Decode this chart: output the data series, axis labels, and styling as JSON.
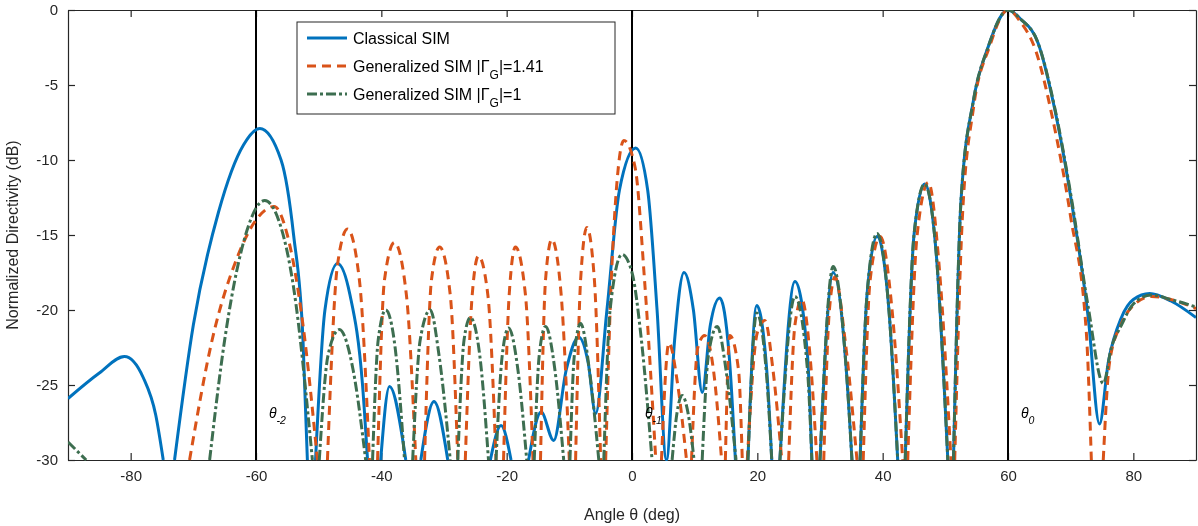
{
  "chart_data": {
    "type": "line",
    "xlabel": "Angle θ (deg)",
    "ylabel": "Normalized Directivity (dB)",
    "xlim": [
      -90,
      90
    ],
    "ylim": [
      -30,
      0
    ],
    "xticks": [
      -80,
      -60,
      -40,
      -20,
      0,
      20,
      40,
      60,
      80
    ],
    "yticks": [
      -30,
      -25,
      -20,
      -15,
      -10,
      -5,
      0
    ],
    "grid": false,
    "legend": "top left",
    "marker": "none",
    "series": [
      {
        "name": "Classical SIM",
        "color": "#0072bd",
        "line_style": "solid",
        "x": [
          -90,
          -85,
          -81,
          -78,
          -76,
          -74.8,
          -74,
          -73,
          -70,
          -66,
          -62,
          -59.4,
          -56,
          -54,
          -52.5,
          -51.8,
          -51.1,
          -50.5,
          -49,
          -47,
          -45,
          -43,
          -42.2,
          -41,
          -40.1,
          -38.7,
          -36.1,
          -35,
          -33.7,
          -31.6,
          -29.4,
          -24,
          -22.6,
          -20.9,
          -19.3,
          -18,
          -16.5,
          -14.5,
          -12.5,
          -10.5,
          -8.5,
          -7,
          -5.8,
          -4,
          -2,
          0.6,
          2.5,
          4,
          5.5,
          6.8,
          8.3,
          9.8,
          11.2,
          12.5,
          14,
          15.5,
          16.5,
          17.5,
          18.5,
          19.9,
          21.5,
          22.3,
          23,
          23.6,
          26,
          28,
          28.7,
          29.3,
          30,
          32.1,
          34.2,
          35.1,
          35.7,
          36.4,
          37.5,
          39.1,
          41,
          42.4,
          43,
          43.6,
          45,
          46.7,
          48.5,
          50.4,
          50.8,
          51.3,
          52.5,
          54.5,
          56.8,
          60,
          62,
          64.8,
          67.4,
          70.1,
          72.8,
          74.6,
          76,
          78.1,
          80,
          82.6,
          86,
          90
        ],
        "values": [
          -25.9,
          -24.2,
          -23.1,
          -24.5,
          -27,
          -30,
          null,
          -30,
          -21,
          -13.5,
          -9,
          -7.9,
          -10,
          -15,
          -22,
          -30,
          null,
          -30,
          -20,
          -16.9,
          -19,
          -25,
          -30,
          null,
          -30,
          -25.1,
          -30,
          null,
          -30,
          -26.1,
          -30,
          null,
          -30,
          -27.7,
          -30,
          null,
          -30,
          -26.8,
          -28.7,
          -24,
          -21.8,
          -23.5,
          -26.9,
          -20,
          -12,
          -9.2,
          -12,
          -20,
          -30,
          -22,
          -17.5,
          -20,
          -25.5,
          -21,
          -19.2,
          -23,
          -30,
          null,
          -30,
          -19.7,
          -24,
          -30,
          null,
          -30,
          -18.1,
          -23,
          -30,
          null,
          -30,
          -17.5,
          -24,
          -30,
          null,
          -30,
          -19,
          -15.1,
          -20,
          -30,
          null,
          -30,
          -15,
          -11.6,
          -16,
          -30,
          null,
          -30,
          -12.7,
          -6,
          -2.5,
          0,
          -0.6,
          -2.2,
          -6.5,
          -12.7,
          -20.5,
          -27.6,
          -23.5,
          -20.5,
          -19.3,
          -18.9,
          -19.4,
          -20.5
        ]
      },
      {
        "name": "Generalized SIM |Γ$_{G}$|=1.41",
        "color": "#d95319",
        "line_style": "dashed",
        "x": [
          -70.6,
          -67,
          -63,
          -60,
          -57.1,
          -55,
          -52.5,
          -50.2,
          -49.4,
          -48.6,
          -47,
          -45.4,
          -43.5,
          -41.9,
          -41.2,
          -40.6,
          -39.5,
          -37.9,
          -36,
          -34.5,
          -33.8,
          -33.1,
          -32,
          -30.7,
          -29,
          -27.8,
          -27.2,
          -26.6,
          -25.5,
          -24.5,
          -23,
          -21.7,
          -21.1,
          -20.5,
          -19.6,
          -18.6,
          -17,
          -15.8,
          -15.2,
          -14.6,
          -13.8,
          -12.8,
          -11.3,
          -10,
          -9.5,
          -9,
          -8.2,
          -7.2,
          -6,
          -5,
          -4.6,
          -4.2,
          -3.2,
          -1.3,
          0.5,
          2,
          3.8,
          4.2,
          4.7,
          5.9,
          7.3,
          8.7,
          9.1,
          9.5,
          10.5,
          11.6,
          13,
          14.3,
          14.6,
          14.9,
          15.6,
          17,
          17.6,
          18,
          18.4,
          20,
          21.2,
          22.5,
          23.9,
          24.5,
          25,
          26,
          27.1,
          28.4,
          29.5,
          30,
          30.6,
          31.5,
          32.4,
          34,
          35.9,
          36.4,
          36.9,
          38,
          39.6,
          41.5,
          43.2,
          43.6,
          44,
          45.5,
          47.3,
          49,
          50.9,
          51.2,
          51.5,
          52.7,
          54.5,
          57,
          60,
          62,
          64.5,
          67,
          70,
          72.5,
          73.3,
          74.2,
          75.2,
          76.2,
          78.1,
          80,
          82.9,
          86,
          90
        ],
        "values": [
          -30,
          -22,
          -16.5,
          -14,
          -13.1,
          -15,
          -21,
          -30,
          null,
          -30,
          -17,
          -14.6,
          -18,
          -30,
          null,
          -30,
          -18,
          -15.5,
          -19,
          -30,
          null,
          -30,
          -18,
          -15.8,
          -19,
          -30,
          null,
          -30,
          -19,
          -16.4,
          -19,
          -30,
          null,
          -30,
          -19,
          -15.8,
          -19,
          -30,
          null,
          -30,
          -18,
          -15.3,
          -19,
          -30,
          null,
          -30,
          -18,
          -14.5,
          -18,
          -30,
          null,
          -30,
          -17,
          -8.7,
          -10.5,
          -18,
          -30,
          null,
          -30,
          -22.2,
          -25,
          -30,
          null,
          -30,
          -22.5,
          -21.7,
          -24,
          -30,
          null,
          -30,
          -21.7,
          -24,
          -30,
          null,
          -30,
          -21.5,
          -20.7,
          -24,
          -30,
          null,
          -30,
          -21,
          -19.3,
          -23,
          -30,
          null,
          -30,
          -20,
          -17.8,
          -22,
          -30,
          null,
          -30,
          -18,
          -15.1,
          -20,
          -30,
          null,
          -30,
          -15,
          -11.5,
          -17,
          -30,
          null,
          -30,
          -14,
          -6.5,
          -2.5,
          0,
          -0.8,
          -2.8,
          -7,
          -13.8,
          -21.5,
          -30,
          null,
          -30,
          -23.5,
          -20.9,
          -19.7,
          -19.1,
          -19.3,
          -19.9
        ]
      },
      {
        "name": "Generalized SIM |Γ$_{G}$|=1",
        "color": "#3d6e50",
        "line_style": "dashdot",
        "x": [
          -90,
          -87.1,
          -80,
          -67.4,
          -65,
          -62,
          -58.6,
          -56,
          -54,
          -51,
          -50.5,
          -49.9,
          -48.5,
          -46.7,
          -44.5,
          -42.5,
          -42,
          -41.4,
          -40.5,
          -39.3,
          -37.8,
          -36.3,
          -35.7,
          -35,
          -33.8,
          -32.2,
          -30.8,
          -29,
          -28.4,
          -27.8,
          -26.8,
          -25.8,
          -24.3,
          -22.9,
          -22.3,
          -21.7,
          -20.7,
          -19.7,
          -18.2,
          -16.8,
          -16.2,
          -15.6,
          -14.8,
          -13.8,
          -12.3,
          -10.9,
          -10.4,
          -9.9,
          -9.2,
          -8.2,
          -6.8,
          -5.3,
          -4.9,
          -4.5,
          -3.5,
          -1.6,
          0,
          1.5,
          3.2,
          4.8,
          6.4,
          7.2,
          8,
          9,
          9.9,
          10.5,
          11.2,
          12.2,
          13.6,
          15,
          16.6,
          17.5,
          18.5,
          19.9,
          21.5,
          22.3,
          23,
          23.6,
          26,
          28,
          28.7,
          29.3,
          30,
          32.1,
          34.2,
          35.1,
          35.7,
          36.4,
          37.5,
          39.1,
          41,
          42.4,
          43,
          43.6,
          45,
          46.7,
          48.5,
          50.4,
          50.8,
          51.3,
          52.5,
          54.5,
          56.8,
          60,
          62,
          64.8,
          67.4,
          70.1,
          72.8,
          75.2,
          76.5,
          78.1,
          80,
          82.9,
          86,
          90
        ],
        "values": [
          -28.8,
          -30,
          null,
          -30,
          -22,
          -15.5,
          -12.7,
          -14.5,
          -18.5,
          -30,
          null,
          -30,
          -23,
          -21.3,
          -24,
          -30,
          null,
          -30,
          -22,
          -20,
          -22.5,
          -30,
          null,
          -30,
          -22,
          -20,
          -23,
          -30,
          null,
          -30,
          -22,
          -20.5,
          -23,
          -30,
          null,
          -30,
          -23,
          -21.2,
          -24,
          -30,
          null,
          -30,
          -23,
          -21.1,
          -24,
          -30,
          null,
          -30,
          -23,
          -20.9,
          -24,
          -30,
          null,
          -30,
          -20,
          -16.3,
          -17.5,
          -22,
          -30,
          null,
          -30,
          -26.8,
          -25.7,
          -27,
          -30,
          null,
          -30,
          -23,
          -21.1,
          -24,
          -30,
          null,
          -30,
          -20.2,
          -24.5,
          -30,
          null,
          -30,
          -19.1,
          -24,
          -30,
          null,
          -30,
          -17.1,
          -24,
          -30,
          null,
          -30,
          -19,
          -14.9,
          -20,
          -30,
          null,
          -30,
          -15,
          -11.6,
          -16,
          -30,
          null,
          -30,
          -12.7,
          -6,
          -2.5,
          0,
          -0.6,
          -2.2,
          -6.4,
          -12.5,
          -19.8,
          -24.9,
          -22.5,
          -21,
          -19.6,
          -19,
          -19.3,
          -19.8
        ]
      }
    ],
    "ref_lines": [
      {
        "axis": "x",
        "value": -60,
        "color": "#000000",
        "label": "θ$_{-2}$"
      },
      {
        "axis": "x",
        "value": 0,
        "color": "#000000",
        "label": "θ$_{-1}$"
      },
      {
        "axis": "x",
        "value": 60,
        "color": "#000000",
        "label": "θ$_{0}$"
      }
    ]
  }
}
